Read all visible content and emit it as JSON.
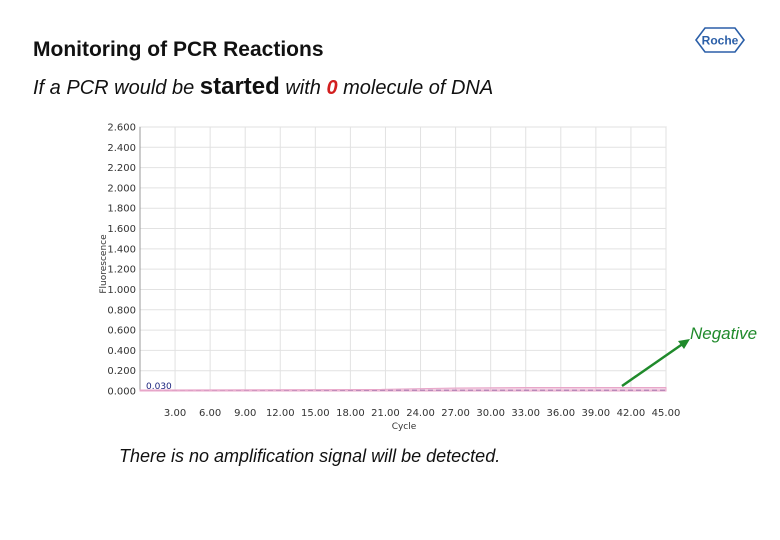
{
  "slide": {
    "title": "Monitoring of PCR Reactions",
    "subtitle": {
      "part1": "If a PCR would be ",
      "emph": "started",
      "part2": " with ",
      "zero": "0",
      "part3": " molecule of DNA"
    },
    "caption": "There is no amplification signal will be detected.",
    "logo_text": "Roche",
    "annotation": "Negative",
    "colors": {
      "annotation": "#1f8a2b",
      "zero": "#d21f1f",
      "negative_line": "#1a237e",
      "baseline_band": "#e8a6c9"
    }
  },
  "chart_data": {
    "type": "line",
    "xlabel": "Cycle",
    "ylabel": "Fluorescence",
    "xlim": [
      0,
      45
    ],
    "ylim": [
      0,
      2.6
    ],
    "x_ticks": [
      "3.00",
      "6.00",
      "9.00",
      "12.00",
      "15.00",
      "18.00",
      "21.00",
      "24.00",
      "27.00",
      "30.00",
      "33.00",
      "36.00",
      "39.00",
      "42.00",
      "45.00"
    ],
    "y_ticks": [
      "0.000",
      "0.200",
      "0.400",
      "0.600",
      "0.800",
      "1.000",
      "1.200",
      "1.400",
      "1.600",
      "1.800",
      "2.000",
      "2.200",
      "2.400",
      "2.600"
    ],
    "grid": true,
    "threshold_label": "0.030",
    "series": [
      {
        "name": "",
        "color": "#1a237e",
        "style": "dashed",
        "x": [
          0,
          45
        ],
        "y": [
          0.005,
          0.005
        ]
      },
      {
        "name": "",
        "color": "#e8a6c9",
        "style": "band",
        "x": [
          0,
          20,
          27,
          33,
          39,
          45
        ],
        "y": [
          0.01,
          0.015,
          0.03,
          0.035,
          0.035,
          0.035
        ]
      }
    ],
    "annotation": {
      "text": "Negative",
      "x": 40,
      "y": 0.01
    }
  }
}
